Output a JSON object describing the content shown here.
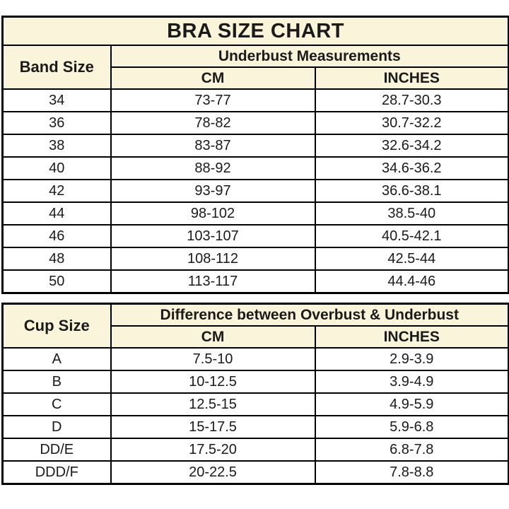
{
  "colors": {
    "header_bg": "#F9F4DA",
    "border": "#000000",
    "text": "#1a1a1a",
    "row_bg": "#ffffff"
  },
  "chart_data": [
    {
      "type": "table",
      "title": "BRA SIZE CHART",
      "corner_label": "Band Size",
      "group_label": "Underbust Measurements",
      "sub_columns": [
        "CM",
        "INCHES"
      ],
      "rows": [
        [
          "34",
          "73-77",
          "28.7-30.3"
        ],
        [
          "36",
          "78-82",
          "30.7-32.2"
        ],
        [
          "38",
          "83-87",
          "32.6-34.2"
        ],
        [
          "40",
          "88-92",
          "34.6-36.2"
        ],
        [
          "42",
          "93-97",
          "36.6-38.1"
        ],
        [
          "44",
          "98-102",
          "38.5-40"
        ],
        [
          "46",
          "103-107",
          "40.5-42.1"
        ],
        [
          "48",
          "108-112",
          "42.5-44"
        ],
        [
          "50",
          "113-117",
          "44.4-46"
        ]
      ]
    },
    {
      "type": "table",
      "corner_label": "Cup Size",
      "group_label": "Difference between Overbust & Underbust",
      "sub_columns": [
        "CM",
        "INCHES"
      ],
      "rows": [
        [
          "A",
          "7.5-10",
          "2.9-3.9"
        ],
        [
          "B",
          "10-12.5",
          "3.9-4.9"
        ],
        [
          "C",
          "12.5-15",
          "4.9-5.9"
        ],
        [
          "D",
          "15-17.5",
          "5.9-6.8"
        ],
        [
          "DD/E",
          "17.5-20",
          "6.8-7.8"
        ],
        [
          "DDD/F",
          "20-22.5",
          "7.8-8.8"
        ]
      ]
    }
  ]
}
